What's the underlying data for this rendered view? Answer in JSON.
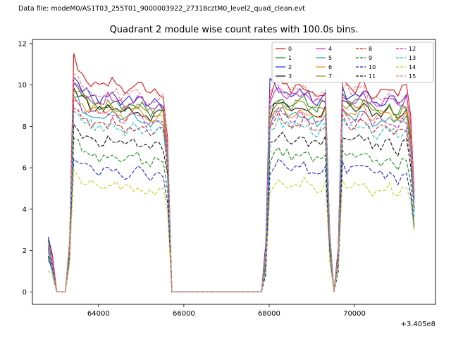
{
  "header": {
    "text": "Data file: modeM0/AS1T03_255T01_9000003922_27318cztM0_level2_quad_clean.evt",
    "color": "#000080"
  },
  "chart_data": {
    "type": "line",
    "title": "Quadrant 2 module wise count rates with 100.0s bins.",
    "xlabel": "",
    "ylabel": "",
    "x_axis_offset": "+3.405e8",
    "xlim": [
      62450,
      71900
    ],
    "ylim": [
      -0.6,
      12.2
    ],
    "xticks": [
      64000,
      66000,
      68000,
      70000
    ],
    "yticks": [
      0,
      2,
      4,
      6,
      8,
      10,
      12
    ],
    "grid": false,
    "legend_position": "upper right",
    "legend_columns": 4,
    "bin_seconds": 100,
    "noise_amp": 0.27,
    "x_env": [
      62820,
      62900,
      63000,
      63300,
      63400,
      63700,
      64000,
      64300,
      64600,
      64900,
      65200,
      65450,
      65600,
      65700,
      67900,
      68000,
      68200,
      68500,
      68800,
      69100,
      69350,
      69450,
      69600,
      69700,
      69900,
      70200,
      70500,
      70800,
      71050,
      71200,
      71300,
      71400
    ],
    "series": [
      {
        "name": "0",
        "color": "#e01010",
        "style": "solid",
        "y_env": [
          2.5,
          2.0,
          0,
          0,
          11.4,
          10.3,
          9.9,
          10.2,
          9.8,
          10.1,
          9.7,
          9.6,
          9.5,
          0,
          0,
          9.0,
          10.4,
          9.6,
          10.0,
          9.5,
          9.8,
          0,
          0,
          10.2,
          9.7,
          10.0,
          9.4,
          9.9,
          9.6,
          10.1,
          9.3,
          5.0
        ]
      },
      {
        "name": "1",
        "color": "#1e8c1e",
        "style": "solid",
        "y_env": [
          2.3,
          1.8,
          0,
          0,
          10.2,
          9.4,
          9.0,
          9.2,
          8.8,
          9.1,
          8.7,
          8.9,
          8.5,
          0,
          0,
          8.6,
          9.5,
          9.0,
          9.3,
          8.8,
          9.1,
          0,
          0,
          9.4,
          9.0,
          9.2,
          8.7,
          9.0,
          8.6,
          9.1,
          8.4,
          4.4
        ]
      },
      {
        "name": "2",
        "color": "#2020dd",
        "style": "solid",
        "y_env": [
          2.4,
          1.9,
          0,
          0,
          10.4,
          9.7,
          9.3,
          9.6,
          9.1,
          9.4,
          9.0,
          9.2,
          8.8,
          0,
          0,
          10.6,
          9.8,
          9.4,
          9.7,
          9.2,
          9.5,
          0,
          0,
          9.8,
          9.3,
          9.6,
          9.1,
          9.4,
          9.0,
          9.5,
          8.8,
          4.6
        ]
      },
      {
        "name": "3",
        "color": "#101010",
        "style": "solid",
        "y_env": [
          2.2,
          1.7,
          0,
          0,
          9.9,
          9.1,
          8.8,
          9.0,
          8.6,
          8.9,
          8.5,
          8.7,
          8.3,
          0,
          0,
          8.4,
          9.3,
          8.8,
          9.1,
          8.6,
          8.9,
          0,
          0,
          9.2,
          8.8,
          9.0,
          8.5,
          8.8,
          8.4,
          8.9,
          8.2,
          4.2
        ]
      },
      {
        "name": "4",
        "color": "#cc29cc",
        "style": "solid",
        "y_env": [
          2.4,
          1.9,
          0,
          0,
          10.3,
          9.6,
          9.2,
          9.5,
          9.0,
          9.3,
          8.9,
          9.1,
          8.7,
          0,
          0,
          9.2,
          9.7,
          9.3,
          9.6,
          9.1,
          9.4,
          0,
          0,
          9.7,
          9.2,
          9.5,
          9.0,
          9.3,
          8.9,
          9.4,
          8.7,
          4.6
        ]
      },
      {
        "name": "5",
        "color": "#18a8a0",
        "style": "solid",
        "y_env": [
          2.1,
          1.6,
          0,
          0,
          9.5,
          8.7,
          8.4,
          8.6,
          8.2,
          8.5,
          8.1,
          8.3,
          7.9,
          0,
          0,
          8.0,
          8.9,
          8.4,
          8.7,
          8.2,
          8.5,
          0,
          0,
          8.8,
          8.4,
          8.6,
          8.1,
          8.4,
          8.0,
          8.5,
          7.8,
          4.0
        ]
      },
      {
        "name": "6",
        "color": "#ff8c1a",
        "style": "solid",
        "y_env": [
          2.2,
          1.7,
          0,
          0,
          9.7,
          8.9,
          8.6,
          8.8,
          8.4,
          8.7,
          8.3,
          8.5,
          8.1,
          0,
          0,
          8.2,
          9.1,
          8.6,
          8.9,
          8.4,
          8.7,
          0,
          0,
          9.0,
          8.6,
          8.8,
          8.3,
          8.6,
          8.2,
          8.7,
          8.0,
          4.1
        ]
      },
      {
        "name": "7",
        "color": "#8f8f1f",
        "style": "solid",
        "y_env": [
          2.3,
          1.8,
          0,
          0,
          10.0,
          9.2,
          8.9,
          9.1,
          8.7,
          9.0,
          8.6,
          8.8,
          8.4,
          0,
          0,
          8.5,
          9.4,
          8.9,
          9.2,
          8.7,
          9.0,
          0,
          0,
          9.3,
          8.9,
          9.1,
          8.6,
          8.9,
          8.5,
          9.0,
          8.3,
          4.3
        ]
      },
      {
        "name": "8",
        "color": "#e01010",
        "style": "dashed",
        "y_env": [
          2.0,
          1.5,
          0,
          0,
          9.0,
          8.3,
          8.0,
          8.2,
          7.8,
          8.1,
          7.7,
          7.9,
          7.5,
          0,
          0,
          7.6,
          8.5,
          8.0,
          8.3,
          7.8,
          8.1,
          0,
          0,
          8.4,
          8.0,
          8.2,
          7.7,
          8.0,
          7.6,
          8.1,
          7.4,
          3.9
        ]
      },
      {
        "name": "9",
        "color": "#1e8c1e",
        "style": "dashed",
        "y_env": [
          1.7,
          1.3,
          0,
          0,
          7.4,
          6.8,
          6.5,
          6.7,
          6.3,
          6.6,
          6.2,
          6.4,
          6.1,
          0,
          0,
          6.2,
          7.0,
          6.5,
          6.8,
          6.3,
          6.6,
          0,
          0,
          6.9,
          6.5,
          6.7,
          6.2,
          6.5,
          6.1,
          6.6,
          6.0,
          3.3
        ]
      },
      {
        "name": "10",
        "color": "#2020dd",
        "style": "dashed",
        "y_env": [
          1.5,
          1.1,
          0,
          0,
          6.7,
          6.1,
          5.8,
          6.0,
          5.6,
          5.9,
          5.5,
          5.7,
          5.4,
          0,
          0,
          5.5,
          6.3,
          5.8,
          6.1,
          5.6,
          5.9,
          0,
          0,
          6.2,
          5.8,
          6.0,
          5.5,
          5.8,
          5.4,
          5.9,
          5.3,
          3.0
        ]
      },
      {
        "name": "11",
        "color": "#101010",
        "style": "dashed",
        "y_env": [
          1.8,
          1.4,
          0,
          0,
          8.1,
          7.5,
          7.2,
          7.4,
          7.0,
          7.3,
          6.9,
          7.1,
          6.8,
          0,
          0,
          6.9,
          7.7,
          7.2,
          7.5,
          7.0,
          7.3,
          0,
          0,
          7.6,
          7.2,
          7.4,
          6.9,
          7.2,
          6.8,
          7.3,
          6.7,
          3.6
        ]
      },
      {
        "name": "12",
        "color": "#cc29cc",
        "style": "dashed",
        "y_env": [
          2.1,
          1.6,
          0,
          0,
          9.4,
          8.7,
          8.4,
          8.6,
          8.2,
          8.5,
          8.1,
          8.3,
          7.9,
          0,
          0,
          8.0,
          8.8,
          8.4,
          8.6,
          8.2,
          8.5,
          0,
          0,
          8.7,
          8.3,
          8.6,
          8.1,
          8.4,
          8.0,
          8.5,
          7.8,
          4.0
        ]
      },
      {
        "name": "13",
        "color": "#18c8c8",
        "style": "dashed",
        "y_env": [
          2.0,
          1.5,
          0,
          0,
          8.9,
          8.2,
          7.9,
          8.1,
          7.7,
          8.0,
          7.6,
          7.8,
          7.5,
          0,
          0,
          7.6,
          8.3,
          7.9,
          8.2,
          7.7,
          8.0,
          0,
          0,
          8.3,
          7.9,
          8.1,
          7.6,
          7.9,
          7.5,
          8.0,
          7.4,
          3.8
        ]
      },
      {
        "name": "14",
        "color": "#cccc20",
        "style": "dashed",
        "y_env": [
          1.3,
          1.0,
          0,
          0,
          5.8,
          5.3,
          5.0,
          5.2,
          4.9,
          5.1,
          4.8,
          5.0,
          4.7,
          0,
          0,
          4.8,
          5.5,
          5.1,
          5.3,
          4.9,
          5.2,
          0,
          0,
          5.4,
          5.0,
          5.2,
          4.8,
          5.1,
          4.7,
          5.2,
          4.6,
          2.7
        ]
      },
      {
        "name": "15",
        "color": "#f08080",
        "style": "dashed",
        "y_env": [
          2.5,
          1.9,
          0,
          0,
          10.6,
          9.9,
          9.6,
          9.8,
          9.4,
          9.7,
          9.3,
          9.5,
          9.1,
          0,
          0,
          9.7,
          10.1,
          9.6,
          9.9,
          9.4,
          9.7,
          0,
          0,
          10.0,
          9.6,
          9.8,
          9.3,
          9.6,
          9.2,
          9.7,
          9.0,
          4.8
        ]
      }
    ]
  }
}
